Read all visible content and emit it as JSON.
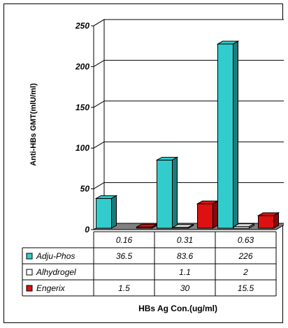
{
  "chart_data": {
    "type": "bar",
    "title": "",
    "xlabel": "HBs Ag Con.(ug/ml)",
    "ylabel": "Anti-HBs GMT(mlU/ml)",
    "ylim": [
      0,
      250
    ],
    "yticks": [
      0,
      50,
      100,
      150,
      200,
      250
    ],
    "categories": [
      "0.16",
      "0.31",
      "0.63"
    ],
    "grid": true,
    "legend_placement": "data-table-left",
    "series": [
      {
        "name": "Adju-Phos",
        "values": [
          36.5,
          83.6,
          226
        ],
        "labels": [
          "36.5",
          "83.6",
          "226"
        ],
        "color": "#33cccc"
      },
      {
        "name": "Alhydrogel",
        "values": [
          null,
          1.1,
          2
        ],
        "labels": [
          "",
          "1.1",
          "2"
        ],
        "color": "#ffffff"
      },
      {
        "name": "Engerix",
        "values": [
          1.5,
          30,
          15.5
        ],
        "labels": [
          "1.5",
          "30",
          "15.5"
        ],
        "color": "#dd1111"
      }
    ],
    "floor_color": "#808080"
  }
}
